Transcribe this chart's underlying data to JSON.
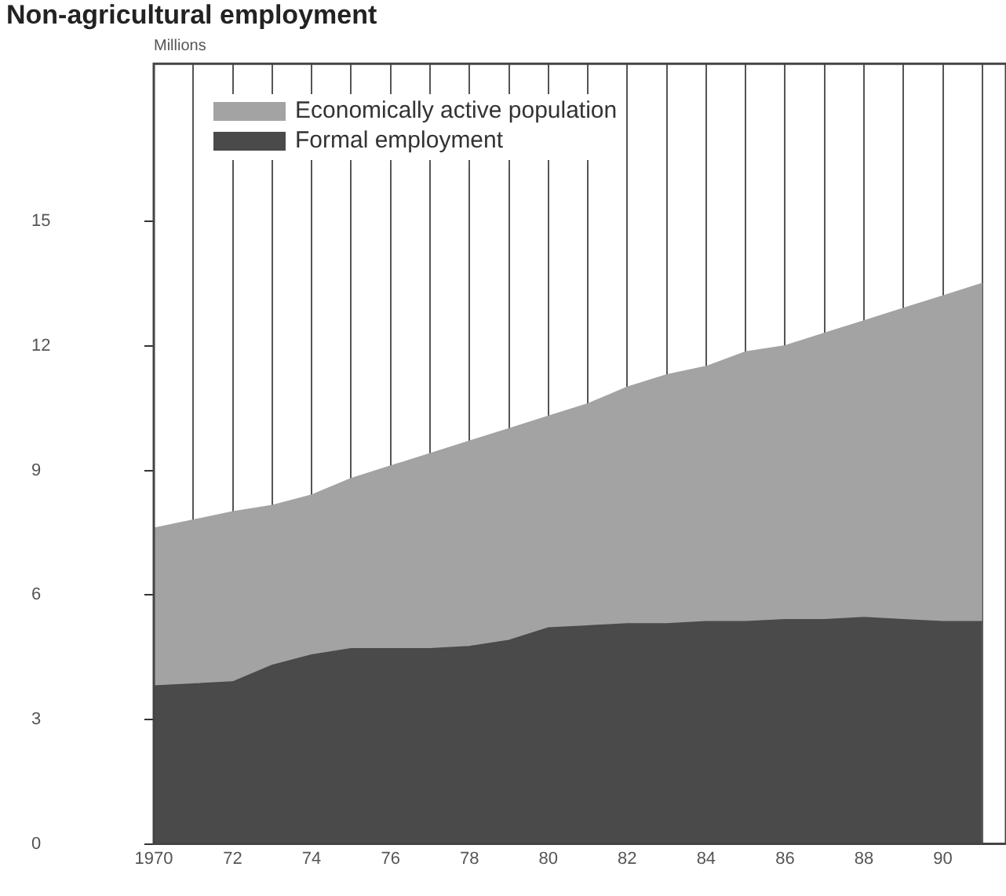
{
  "chart_data": {
    "type": "area",
    "title": "Non-agricultural employment",
    "annotations": [
      "Millions"
    ],
    "x": [
      1970,
      1971,
      1972,
      1973,
      1974,
      1975,
      1976,
      1977,
      1978,
      1979,
      1980,
      1981,
      1982,
      1983,
      1984,
      1985,
      1986,
      1987,
      1988,
      1989,
      1990,
      1991
    ],
    "series": [
      {
        "name": "Economically active population",
        "color": "#a3a3a3",
        "values": [
          7.6,
          7.8,
          8.0,
          8.15,
          8.4,
          8.8,
          9.1,
          9.4,
          9.7,
          10.0,
          10.3,
          10.6,
          11.0,
          11.3,
          11.5,
          11.85,
          12.0,
          12.3,
          12.6,
          12.9,
          13.2,
          13.5
        ]
      },
      {
        "name": "Formal employment",
        "color": "#4a4a4a",
        "values": [
          3.8,
          3.85,
          3.9,
          4.3,
          4.55,
          4.7,
          4.7,
          4.7,
          4.75,
          4.9,
          5.2,
          5.25,
          5.3,
          5.3,
          5.35,
          5.35,
          5.4,
          5.4,
          5.45,
          5.4,
          5.35,
          5.35
        ]
      }
    ],
    "xlim": [
      1970,
      1991.6
    ],
    "xticks": [
      {
        "value": 1970,
        "label": "1970"
      },
      {
        "value": 1971,
        "label": null
      },
      {
        "value": 1972,
        "label": "72"
      },
      {
        "value": 1973,
        "label": null
      },
      {
        "value": 1974,
        "label": "74"
      },
      {
        "value": 1975,
        "label": null
      },
      {
        "value": 1976,
        "label": "76"
      },
      {
        "value": 1977,
        "label": null
      },
      {
        "value": 1978,
        "label": "78"
      },
      {
        "value": 1979,
        "label": null
      },
      {
        "value": 1980,
        "label": "80"
      },
      {
        "value": 1981,
        "label": null
      },
      {
        "value": 1982,
        "label": "82"
      },
      {
        "value": 1983,
        "label": null
      },
      {
        "value": 1984,
        "label": "84"
      },
      {
        "value": 1985,
        "label": null
      },
      {
        "value": 1986,
        "label": "86"
      },
      {
        "value": 1987,
        "label": null
      },
      {
        "value": 1988,
        "label": "88"
      },
      {
        "value": 1989,
        "label": null
      },
      {
        "value": 1990,
        "label": "90"
      },
      {
        "value": 1991,
        "label": null
      }
    ],
    "ylim": [
      0,
      18.8
    ],
    "yticks": [
      0,
      3,
      6,
      9,
      12,
      15
    ],
    "grid": "x",
    "legend": "top left"
  }
}
